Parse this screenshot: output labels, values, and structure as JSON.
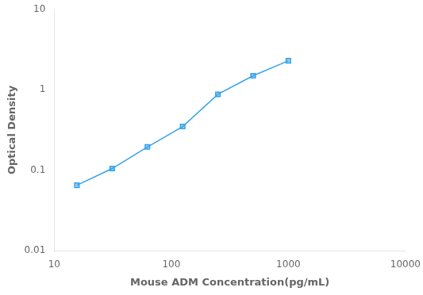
{
  "chart_data": {
    "type": "line",
    "x": [
      15.625,
      31.25,
      62.5,
      125,
      250,
      500,
      1000
    ],
    "values": [
      0.065,
      0.105,
      0.195,
      0.35,
      0.88,
      1.5,
      2.3
    ],
    "xlabel": "Mouse ADM Concentration(pg/mL)",
    "ylabel": "Optical Density",
    "xlim": [
      10,
      10000
    ],
    "ylim": [
      0.01,
      10
    ],
    "xticks": [
      10,
      100,
      1000,
      10000
    ],
    "yticks": [
      0.01,
      0.1,
      1,
      10
    ],
    "log": true,
    "grid": false,
    "marker": "square"
  }
}
